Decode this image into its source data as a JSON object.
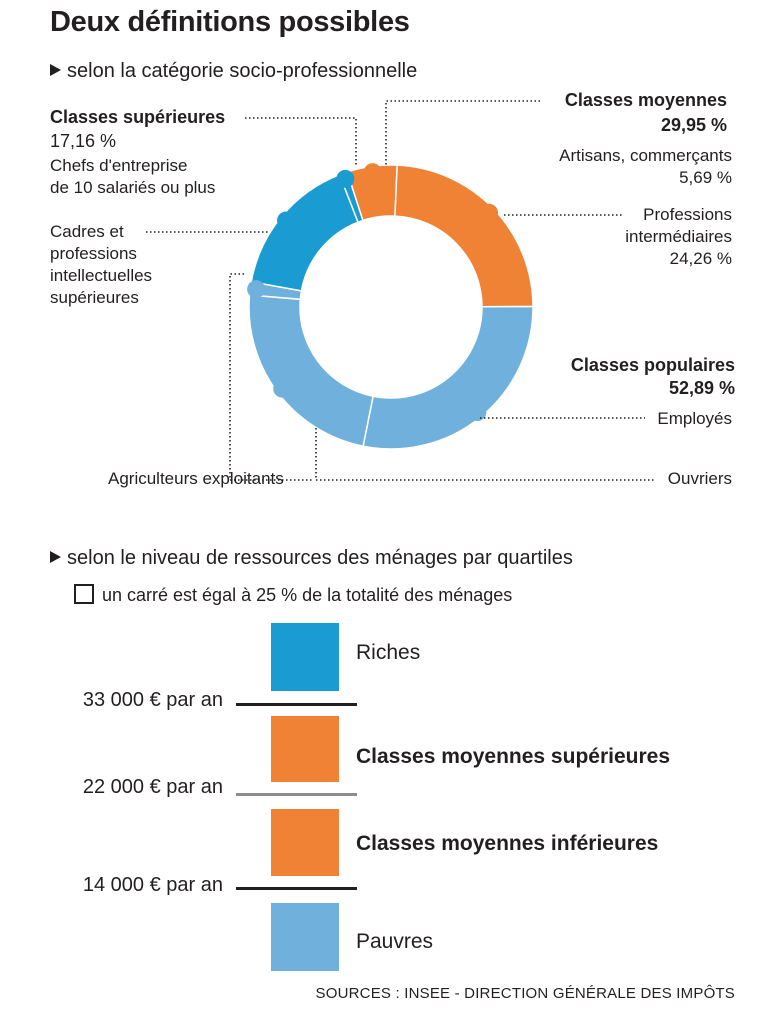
{
  "title": "Deux définitions possibles",
  "sections": {
    "csp": "selon la catégorie socio-professionnelle",
    "ressources": "selon le niveau de ressources des ménages par quartiles"
  },
  "labels": {
    "sup_title": "Classes supérieures",
    "sup_value": "17,16 %",
    "chefs_1": "Chefs d'entreprise",
    "chefs_2": "de 10 salariés ou plus",
    "cadres_1": "Cadres et",
    "cadres_2": "professions",
    "cadres_3": "intellectuelles",
    "cadres_4": "supérieures",
    "moy_title": "Classes moyennes",
    "moy_value": "29,95 %",
    "artisans_1": "Artisans, commerçants",
    "artisans_2": "5,69 %",
    "prof_1": "Professions",
    "prof_2": "intermédiaires",
    "prof_3": "24,26 %",
    "pop_title": "Classes populaires",
    "pop_value": "52,89 %",
    "employes": "Employés",
    "ouvriers": "Ouvriers",
    "agriculteurs": "Agriculteurs exploitants"
  },
  "chart_data": [
    {
      "type": "pie",
      "segments": [
        {
          "category": "Artisans, commerçants",
          "group": "Classes moyennes",
          "value": 5.69
        },
        {
          "category": "Professions intermédiaires",
          "group": "Classes moyennes",
          "value": 24.26
        },
        {
          "category": "Employés",
          "group": "Classes populaires",
          "value": 28.2
        },
        {
          "category": "Ouvriers",
          "group": "Classes populaires",
          "value": 23.2
        },
        {
          "category": "Agriculteurs exploitants",
          "group": "Classes populaires",
          "value": 1.49
        },
        {
          "category": "Cadres et professions intellectuelles supérieures",
          "group": "Classes supérieures",
          "value": 16.26
        },
        {
          "category": "Chefs d'entreprise de 10 salariés ou plus",
          "group": "Classes supérieures",
          "value": 0.9
        }
      ],
      "groups": [
        {
          "name": "Classes moyennes",
          "value": 29.95,
          "color": "#f08236"
        },
        {
          "name": "Classes populaires",
          "value": 52.89,
          "color": "#6fb1dc"
        },
        {
          "name": "Classes supérieures",
          "value": 17.16,
          "color": "#1a9bd2"
        }
      ]
    },
    {
      "type": "table",
      "legend": "un carré est égal à 25 % de la totalité des ménages",
      "quartiles": [
        {
          "label": "Riches",
          "share": 25,
          "color": "#1a9bd2"
        },
        {
          "label": "Classes moyennes supérieures",
          "share": 25,
          "color": "#f08236"
        },
        {
          "label": "Classes moyennes inférieures",
          "share": 25,
          "color": "#f08236"
        },
        {
          "label": "Pauvres",
          "share": 25,
          "color": "#6fb1dc"
        }
      ],
      "thresholds": [
        {
          "label": "33 000 € par an",
          "color": "#231f20"
        },
        {
          "label": "22 000 € par an",
          "color": "#8a8c8e"
        },
        {
          "label": "14 000 € par an",
          "color": "#231f20"
        }
      ]
    }
  ],
  "sources": "SOURCES : INSEE - DIRECTION GÉNÉRALE DES IMPÔTS"
}
